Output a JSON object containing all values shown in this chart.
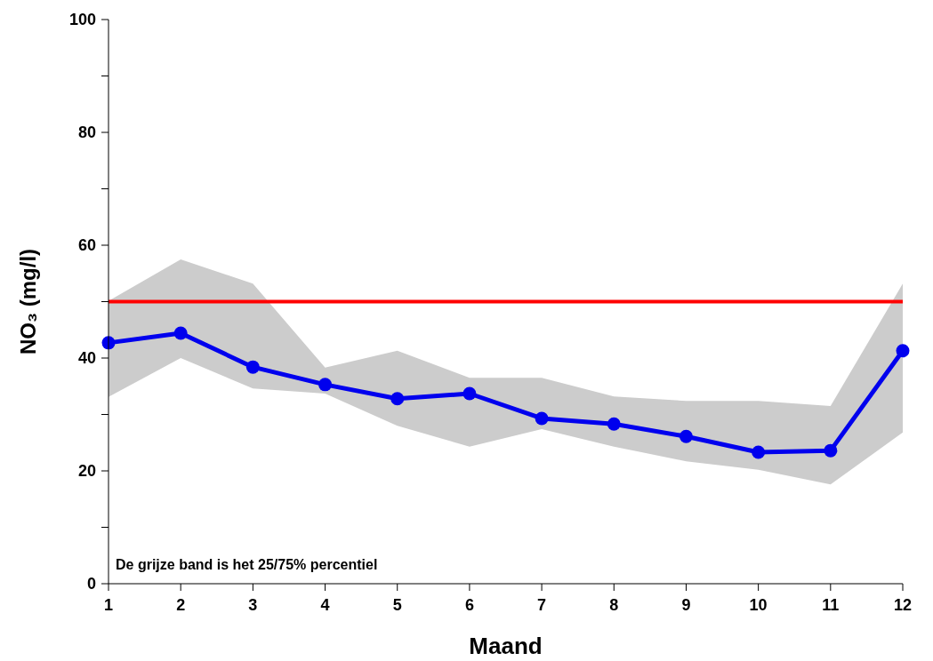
{
  "chart_data": {
    "type": "line",
    "xlabel": "Maand",
    "ylabel": "NO₃ (mg/l)",
    "x": [
      1,
      2,
      3,
      4,
      5,
      6,
      7,
      8,
      9,
      10,
      11,
      12
    ],
    "series": [
      {
        "color": "#0000ee",
        "values": [
          42.7,
          44.4,
          38.4,
          35.3,
          32.8,
          33.7,
          29.3,
          28.3,
          26.1,
          23.3,
          23.6,
          41.3
        ],
        "lower": [
          33.1,
          40,
          34.6,
          33.7,
          28,
          24.3,
          27.4,
          24.3,
          21.7,
          20.2,
          17.6,
          26.8
        ],
        "upper": [
          50.1,
          57.5,
          53.2,
          38.3,
          41.3,
          36.5,
          36.5,
          33.2,
          32.4,
          32.4,
          31.5,
          53.2
        ]
      }
    ],
    "xlim": [
      1,
      12
    ],
    "xticks": [
      1,
      2,
      3,
      4,
      5,
      6,
      7,
      8,
      9,
      10,
      11,
      12
    ],
    "ylim": [
      0,
      100
    ],
    "yticks": [
      0,
      {
        "value": 10,
        "label": null
      },
      20,
      {
        "value": 30,
        "label": null
      },
      40,
      {
        "value": 50,
        "label": null
      },
      60,
      {
        "value": 70,
        "label": null
      },
      80,
      {
        "value": 90,
        "label": null
      },
      100
    ],
    "ref_lines": [
      {
        "axis": "y",
        "value": 50,
        "color": "#ff0000"
      }
    ],
    "annotations": [
      "De grijze band is het 25/75% percentiel"
    ],
    "marker": "circle",
    "line_style": "solid",
    "grid": false
  }
}
